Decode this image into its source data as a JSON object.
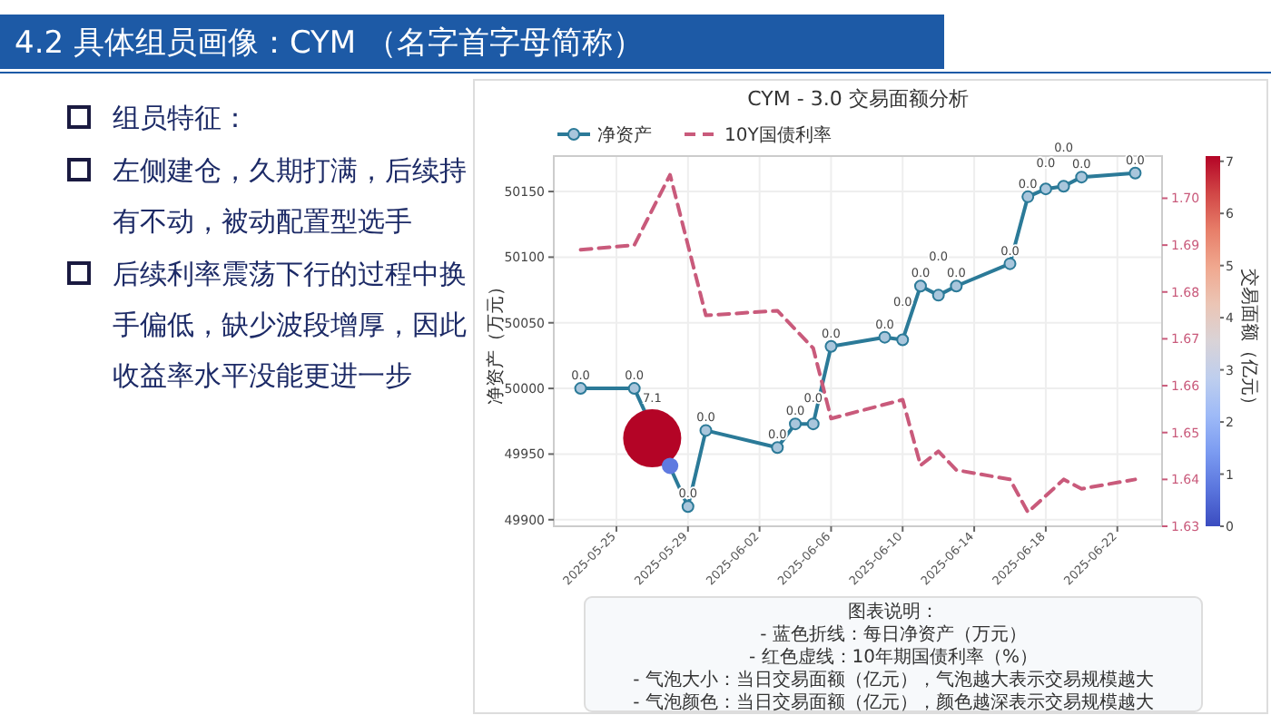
{
  "chart_data": {
    "type": "line",
    "title": "CYM - 3.0 交易面额分析",
    "ylabel": "净资产（万元）",
    "clabel": "交易面额（亿元）",
    "annotations": [
      "4.2 具体组员画像：CYM （名字首字母简称）",
      "组员特征：",
      "左侧建仓，久期打满，后续持有不动，被动配置型选手",
      "后续利率震荡下行的过程中换手偏低，缺少波段增厚，因此收益率水平没能更进一步",
      "图表说明：\n- 蓝色折线：每日净资产（万元）\n- 红色虚线：10年期国债利率（%）\n- 气泡大小：当日交易面额（亿元），气泡越大表示交易规模越大\n- 气泡颜色：当日交易面额（亿元），颜色越深表示交易规模越大",
      {
        "text": "7.1",
        "x": "2025-05-27",
        "y": 49962
      },
      {
        "text": "0.0",
        "x": "2025-05-23",
        "y": 50000
      },
      {
        "text": "0.0",
        "x": "2025-05-26",
        "y": 50000
      },
      {
        "text": "0.0",
        "x": "2025-05-29",
        "y": 49910
      },
      {
        "text": "0.0",
        "x": "2025-05-30",
        "y": 49968
      },
      {
        "text": "0.0",
        "x": "2025-06-03",
        "y": 49955
      },
      {
        "text": "0.0",
        "x": "2025-06-04",
        "y": 49973
      },
      {
        "text": "0.0",
        "x": "2025-06-05",
        "y": 49973
      },
      {
        "text": "0.0",
        "x": "2025-06-06",
        "y": 50032
      },
      {
        "text": "0.0",
        "x": "2025-06-09",
        "y": 50039
      },
      {
        "text": "0.0",
        "x": "2025-06-10",
        "y": 50037
      },
      {
        "text": "0.0",
        "x": "2025-06-11",
        "y": 50078
      },
      {
        "text": "0.0",
        "x": "2025-06-12",
        "y": 50071
      },
      {
        "text": "0.0",
        "x": "2025-06-13",
        "y": 50078
      },
      {
        "text": "0.0",
        "x": "2025-06-16",
        "y": 50095
      },
      {
        "text": "0.0",
        "x": "2025-06-17",
        "y": 50146
      },
      {
        "text": "0.0",
        "x": "2025-06-18",
        "y": 50152
      },
      {
        "text": "0.0",
        "x": "2025-06-19",
        "y": 50154
      },
      {
        "text": "0.0",
        "x": "2025-06-20",
        "y": 50161
      },
      {
        "text": "0.0",
        "x": "2025-06-23",
        "y": 50164
      }
    ],
    "xlim": [
      "2025-05-21T12:00",
      "2025-06-24T12:00"
    ],
    "xticks": [
      {
        "value": "2025-05-25",
        "label": "2025-05-25"
      },
      {
        "value": "2025-05-29",
        "label": "2025-05-29"
      },
      {
        "value": "2025-06-02",
        "label": "2025-06-02"
      },
      {
        "value": "2025-06-06",
        "label": "2025-06-06"
      },
      {
        "value": "2025-06-10",
        "label": "2025-06-10"
      },
      {
        "value": "2025-06-14",
        "label": "2025-06-14"
      },
      {
        "value": "2025-06-18",
        "label": "2025-06-18"
      },
      {
        "value": "2025-06-22",
        "label": "2025-06-22"
      }
    ],
    "ylim": [
      49895,
      50177
    ],
    "yticks": [
      49900,
      49950,
      50000,
      50050,
      50100,
      50150
    ],
    "y2lim": [
      1.63,
      1.709
    ],
    "y2ticks": [
      {
        "value": 1.63,
        "label": "1.63"
      },
      {
        "value": 1.64,
        "label": "1.64"
      },
      {
        "value": 1.65,
        "label": "1.65"
      },
      {
        "value": 1.66,
        "label": "1.66"
      },
      {
        "value": 1.67,
        "label": "1.67"
      },
      {
        "value": 1.68,
        "label": "1.68"
      },
      {
        "value": 1.69,
        "label": "1.69"
      },
      {
        "value": 1.7,
        "label": "1.70"
      }
    ],
    "clim": [
      0,
      7.1
    ],
    "cticks": [
      0,
      1,
      2,
      3,
      4,
      5,
      6,
      7
    ],
    "grid": true,
    "legend": "top left",
    "series": [
      {
        "name": "净资产",
        "color": "#2b7a98",
        "marker": "circle",
        "line_style": "solid",
        "x": [
          "2025-05-23",
          "2025-05-26",
          "2025-05-29",
          "2025-05-30",
          "2025-06-03",
          "2025-06-04",
          "2025-06-05",
          "2025-06-06",
          "2025-06-09",
          "2025-06-10",
          "2025-06-11",
          "2025-06-12",
          "2025-06-13",
          "2025-06-16",
          "2025-06-17",
          "2025-06-18",
          "2025-06-19",
          "2025-06-20",
          "2025-06-23"
        ],
        "values": [
          50000,
          50000,
          49910,
          49968,
          49955,
          49973,
          49973,
          50032,
          50039,
          50037,
          50078,
          50071,
          50078,
          50095,
          50146,
          50152,
          50154,
          50161,
          50164
        ]
      },
      {
        "name": "10Y国债利率",
        "axis": "y2",
        "color": "#c95a7b",
        "marker": "none",
        "line_style": "dashed",
        "x": [
          "2025-05-23",
          "2025-05-26",
          "2025-05-28",
          "2025-05-30",
          "2025-06-03",
          "2025-06-04",
          "2025-06-05",
          "2025-06-06",
          "2025-06-10",
          "2025-06-11",
          "2025-06-12",
          "2025-06-13",
          "2025-06-16",
          "2025-06-17",
          "2025-06-19",
          "2025-06-20",
          "2025-06-23"
        ],
        "values": [
          1.689,
          1.69,
          1.705,
          1.675,
          1.676,
          1.672,
          1.668,
          1.653,
          1.657,
          1.643,
          1.646,
          1.642,
          1.64,
          1.633,
          1.64,
          1.638,
          1.64
        ]
      },
      {
        "type": "bubble",
        "x": [
          "2025-05-27",
          "2025-05-28"
        ],
        "values": [
          49962,
          49941
        ],
        "sizes": [
          1,
          0.08
        ],
        "colors": [
          "#b40426",
          "#5f7ae0"
        ]
      }
    ]
  }
}
